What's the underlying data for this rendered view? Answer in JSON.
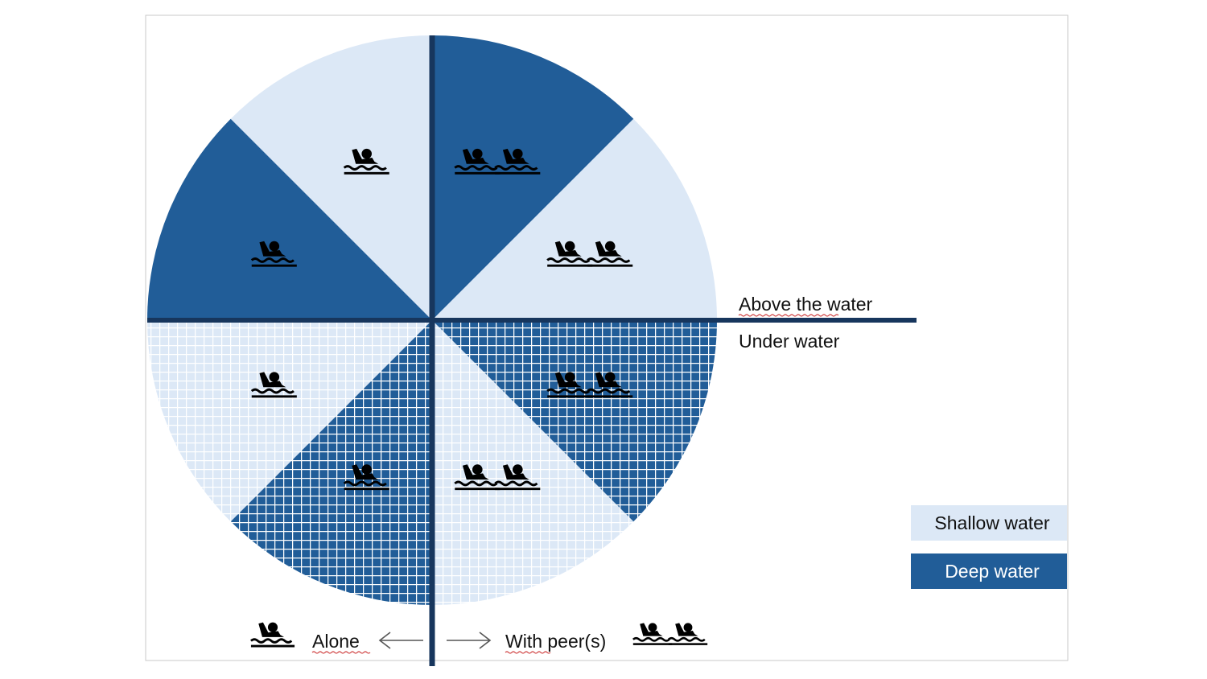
{
  "colors": {
    "shallow": "#dce8f6",
    "deep": "#215d98",
    "axis": "#17365d",
    "grid_on_shallow": "#ffffff",
    "grid_on_deep": "#ffffff",
    "icon": "#000000",
    "frame": "#c8c8c8"
  },
  "labels": {
    "above": "Above the water",
    "under": "Under water",
    "alone": "Alone",
    "with_peers": "With peer(s)"
  },
  "legend": {
    "shallow": "Shallow water",
    "deep": "Deep water"
  },
  "sectors": [
    {
      "zone": "above",
      "group": "alone",
      "depth": "shallow",
      "swimmers": 1
    },
    {
      "zone": "above",
      "group": "alone",
      "depth": "deep",
      "swimmers": 1
    },
    {
      "zone": "above",
      "group": "peers",
      "depth": "deep",
      "swimmers": 2
    },
    {
      "zone": "above",
      "group": "peers",
      "depth": "shallow",
      "swimmers": 2
    },
    {
      "zone": "under",
      "group": "alone",
      "depth": "shallow",
      "swimmers": 1
    },
    {
      "zone": "under",
      "group": "alone",
      "depth": "deep",
      "swimmers": 1
    },
    {
      "zone": "under",
      "group": "peers",
      "depth": "shallow",
      "swimmers": 2
    },
    {
      "zone": "under",
      "group": "peers",
      "depth": "deep",
      "swimmers": 2
    }
  ]
}
